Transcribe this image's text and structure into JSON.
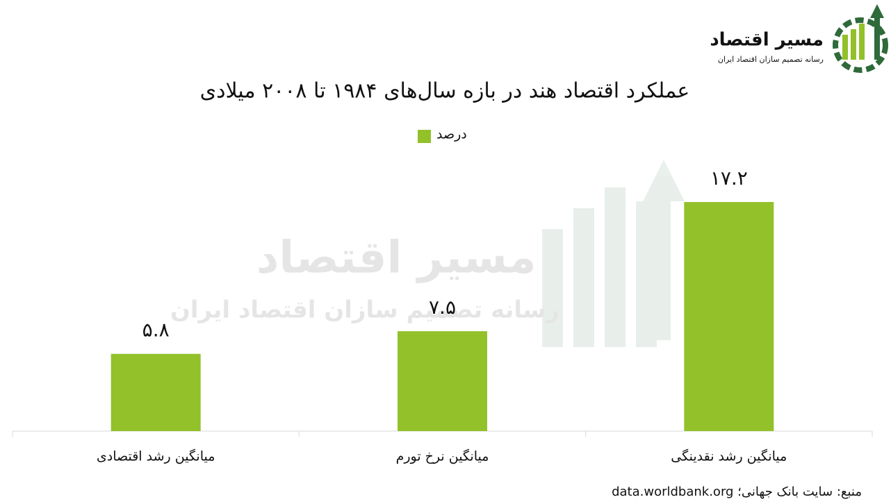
{
  "chart_data": {
    "type": "bar",
    "title": "عملکرد اقتصاد هند در بازه سال‌های ۱۹۸۴ تا ۲۰۰۸ میلادی",
    "categories": [
      "میانگین رشد اقتصادی",
      "میانگین نرخ تورم",
      "میانگین رشد نقدینگی"
    ],
    "series": [
      {
        "name": "درصد",
        "color": "#92c12a",
        "values": [
          5.8,
          7.5,
          17.2
        ],
        "value_labels": [
          "۵.۸",
          "۷.۵",
          "۱۷.۲"
        ]
      }
    ],
    "source": "منبع: سایت بانک جهانی؛ data.worldbank.org",
    "grid": false
  },
  "logo": {
    "name": "مسیر اقتصاد",
    "tagline": "رسانه تصمیم سازان اقتصاد ایران"
  }
}
